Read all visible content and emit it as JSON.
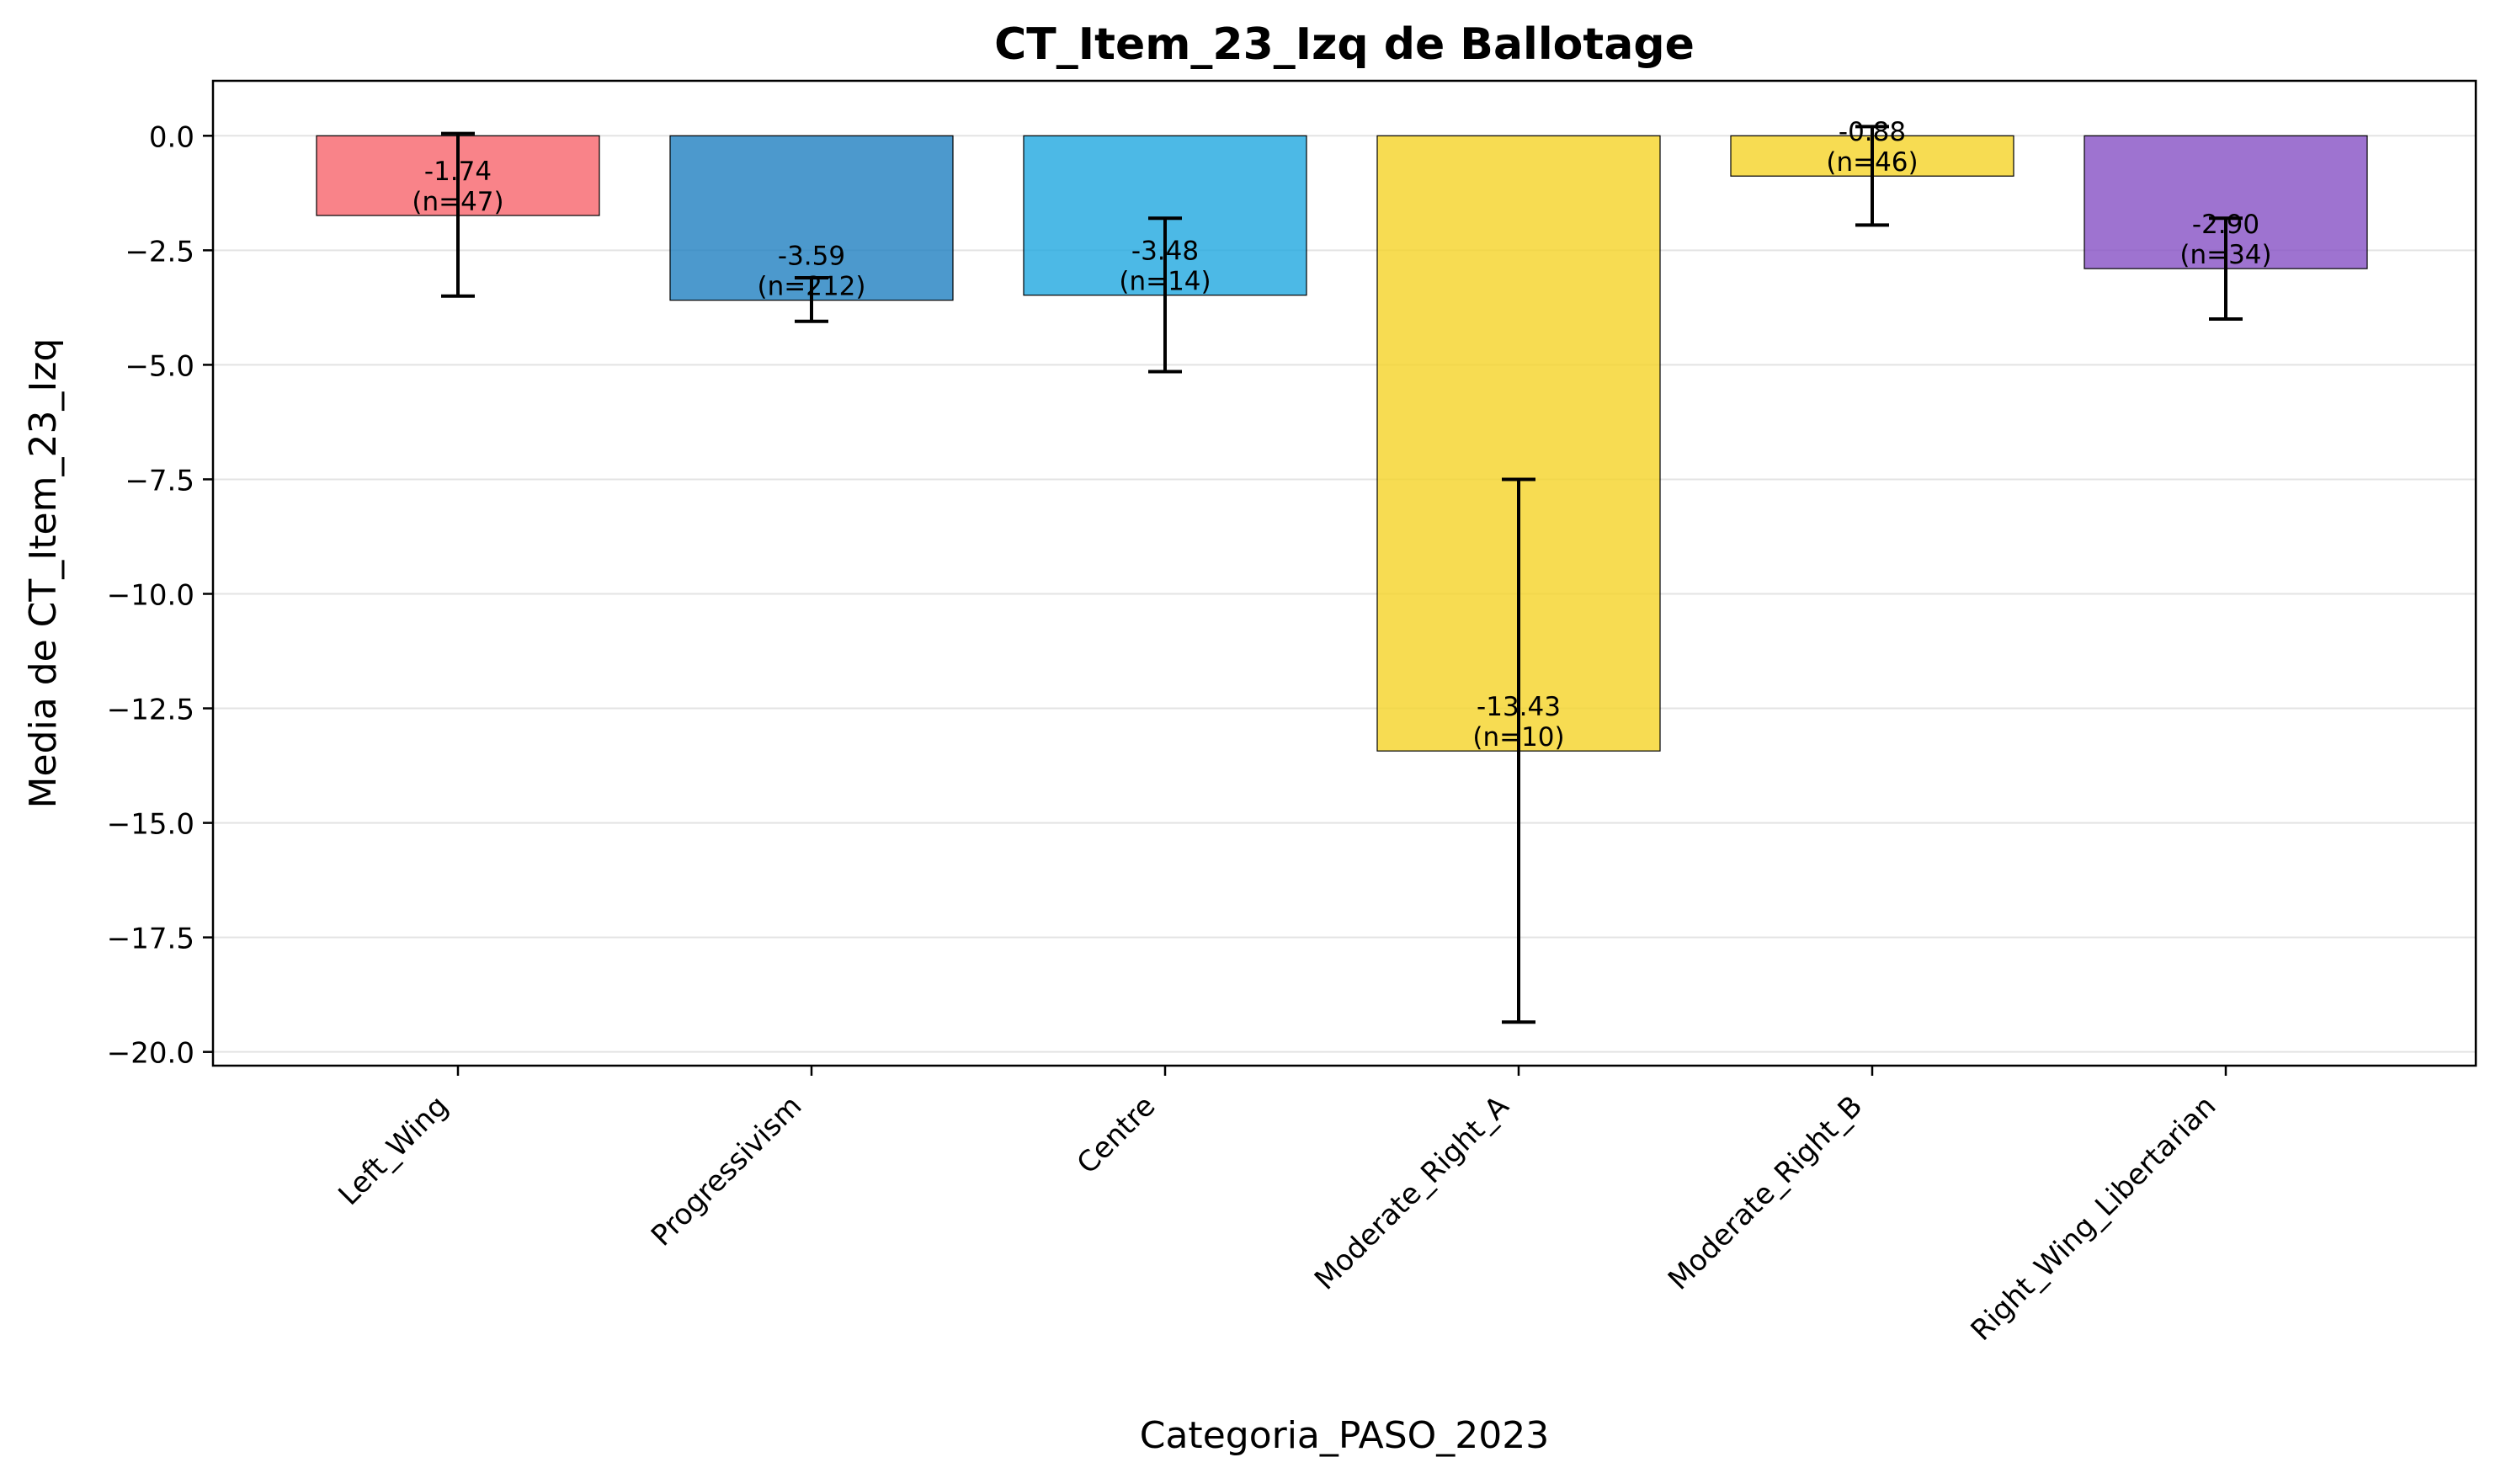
{
  "chart_data": {
    "type": "bar",
    "title": "CT_Item_23_Izq de Ballotage",
    "xlabel": "Categoria_PASO_2023",
    "ylabel": "Media de CT_Item_23_Izq",
    "categories": [
      "Left_Wing",
      "Progressivism",
      "Centre",
      "Moderate_Right_A",
      "Moderate_Right_B",
      "Right_Wing_Libertarian"
    ],
    "values": [
      -1.74,
      -3.59,
      -3.48,
      -13.43,
      -0.88,
      -2.9
    ],
    "error_low": [
      -3.5,
      -4.05,
      -5.15,
      -19.35,
      -1.95,
      -4.0
    ],
    "error_high": [
      0.05,
      -3.1,
      -1.8,
      -7.5,
      0.2,
      -1.8
    ],
    "bar_labels": [
      "-1.74",
      "-3.59",
      "-3.48",
      "-13.43",
      "-0.88",
      "-2.90"
    ],
    "n_labels": [
      "(n=47)",
      "(n=212)",
      "(n=14)",
      "(n=10)",
      "(n=46)",
      "(n=34)"
    ],
    "colors": [
      "#f8646c",
      "#1f7fc0",
      "#1fa8e0",
      "#f5d327",
      "#f5d327",
      "#8650c4"
    ],
    "ylim": [
      -20.3,
      1.2
    ],
    "yticks": [
      0.0,
      -2.5,
      -5.0,
      -7.5,
      -10.0,
      -12.5,
      -15.0,
      -17.5,
      -20.0
    ],
    "ytick_labels": [
      "0.0",
      "−2.5",
      "−5.0",
      "−7.5",
      "−10.0",
      "−12.5",
      "−15.0",
      "−17.5",
      "−20.0"
    ],
    "grid": "y",
    "legend": "none"
  }
}
